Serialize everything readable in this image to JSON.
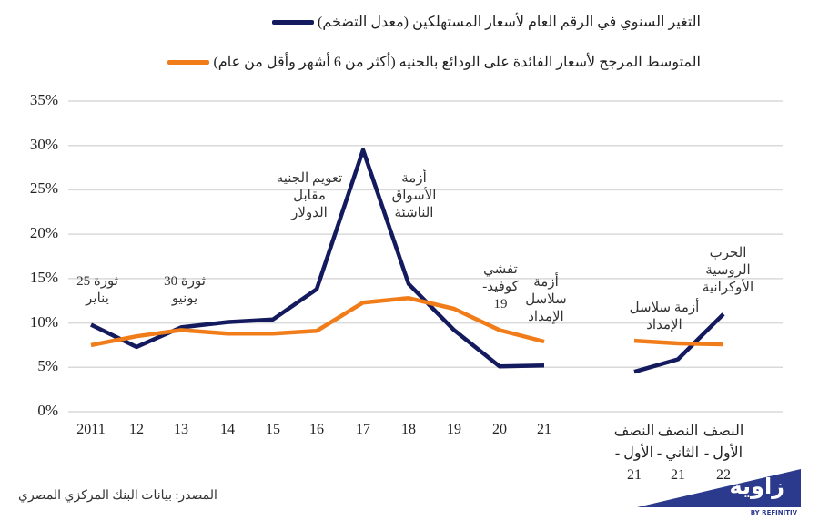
{
  "chart_data": {
    "type": "line",
    "title": "",
    "xlabel": "",
    "ylabel": "",
    "ylim": [
      0,
      35
    ],
    "yticks": [
      "0%",
      "5%",
      "10%",
      "15%",
      "20%",
      "25%",
      "30%",
      "35%"
    ],
    "grid": true,
    "legend_position": "top",
    "categories": [
      "2011",
      "12",
      "13",
      "14",
      "15",
      "16",
      "17",
      "18",
      "19",
      "20",
      "21",
      "H1-21",
      "H2-21",
      "H1-22"
    ],
    "x_labels_annual": [
      "2011",
      "12",
      "13",
      "14",
      "15",
      "16",
      "17",
      "18",
      "19",
      "20",
      "21"
    ],
    "x_labels_half": [
      "النصف\nالأول -\n21",
      "النصف\nالثاني -\n21",
      "النصف\nالأول -\n22"
    ],
    "series": [
      {
        "name": "التغير السنوي في الرقم العام لأسعار المستهلكين (معدل التضخم)",
        "color": "#141a5e",
        "values": [
          9.8,
          7.3,
          9.5,
          10.1,
          10.4,
          13.8,
          29.5,
          14.4,
          9.2,
          5.1,
          5.2,
          4.5,
          5.9,
          11.0
        ]
      },
      {
        "name": "المتوسط المرجح لأسعار الفائدة على الودائع بالجنيه (أكثر من 6 أشهر وأقل من عام)",
        "color": "#f07d1a",
        "values": [
          7.5,
          8.5,
          9.2,
          8.8,
          8.8,
          9.1,
          12.3,
          12.8,
          11.6,
          9.2,
          7.9,
          8.0,
          7.7,
          7.6
        ]
      }
    ],
    "annotations": [
      "ثورة 25\nيناير",
      "ثورة 30\nيونيو",
      "تعويم الجنيه\nمقابل\nالدولار",
      "أزمة\nالأسواق\nالناشئة",
      "تفشي\nكوفيد-\n19",
      "أزمة\nسلاسل\nالإمداد",
      "أزمة سلاسل\nالإمداد",
      "الحرب\nالروسية\nالأوكرانية"
    ]
  },
  "source": "المصدر: بيانات البنك المركزي المصري",
  "logo": {
    "name": "زاوية",
    "sub": "BY REFINITIV"
  }
}
